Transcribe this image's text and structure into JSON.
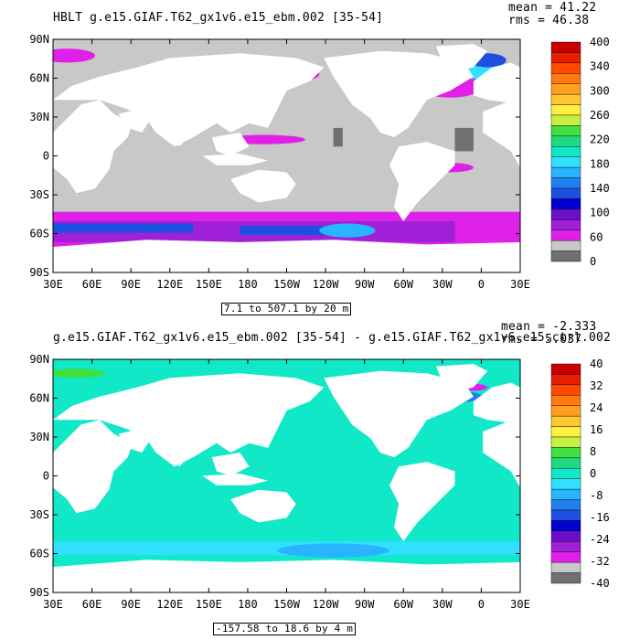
{
  "panels": [
    {
      "title": "HBLT g.e15.GIAF.T62_gx1v6.e15_ebm.002 [35-54]",
      "stats": {
        "mean": "mean = 41.22",
        "rms": "rms = 46.38"
      },
      "range_label": "7.1 to 507.1 by 20 m",
      "lat_ticks": [
        "90N",
        "60N",
        "30N",
        "0",
        "30S",
        "60S",
        "90S"
      ],
      "lon_ticks": [
        "30E",
        "60E",
        "90E",
        "120E",
        "150E",
        "180",
        "150W",
        "120W",
        "90W",
        "60W",
        "30W",
        "0",
        "30E"
      ],
      "colorbar": {
        "labels": [
          "400",
          "340",
          "300",
          "260",
          "220",
          "180",
          "140",
          "100",
          "60",
          "0"
        ],
        "colors": [
          "#c80000",
          "#e81e00",
          "#ff4a00",
          "#ff7a10",
          "#ffa020",
          "#ffc830",
          "#fff040",
          "#c8f040",
          "#40e040",
          "#20d880",
          "#10e8c8",
          "#30e0ff",
          "#28b4ff",
          "#2080f0",
          "#1e50e0",
          "#0000d0",
          "#6a10c8",
          "#a020d8",
          "#e020e8",
          "#c8c8c8",
          "#707070"
        ]
      }
    },
    {
      "title": "g.e15.GIAF.T62_gx1v6.e15_ebm.002 [35-54] - g.e15.GIAF.T62_gx1v6.e15.ctrl.002",
      "stats": {
        "mean": "mean = -2.333",
        "rms": "rms = 5.037"
      },
      "range_label": "-157.58 to 18.6 by 4 m",
      "lat_ticks": [
        "90N",
        "60N",
        "30N",
        "0",
        "30S",
        "60S",
        "90S"
      ],
      "lon_ticks": [
        "30E",
        "60E",
        "90E",
        "120E",
        "150E",
        "180",
        "150W",
        "120W",
        "90W",
        "60W",
        "30W",
        "0",
        "30E"
      ],
      "colorbar": {
        "labels": [
          "40",
          "32",
          "24",
          "16",
          "8",
          "0",
          "-8",
          "-16",
          "-24",
          "-32",
          "-40"
        ],
        "colors": [
          "#c80000",
          "#e81e00",
          "#ff4a00",
          "#ff7a10",
          "#ffa020",
          "#ffc830",
          "#fff040",
          "#c8f040",
          "#40e040",
          "#20d880",
          "#10e8c8",
          "#30e0ff",
          "#28b4ff",
          "#2080f0",
          "#1e50e0",
          "#0000d0",
          "#6a10c8",
          "#a020d8",
          "#e020e8",
          "#c8c8c8",
          "#707070"
        ]
      }
    }
  ],
  "colors": {
    "land": "#ffffff",
    "ocean_top": "#c8c8c8",
    "ocean_bottom": "#10e8c8",
    "magenta": "#e020e8",
    "purple": "#a020d8",
    "blue": "#1e50e0",
    "dark_gray": "#707070"
  }
}
